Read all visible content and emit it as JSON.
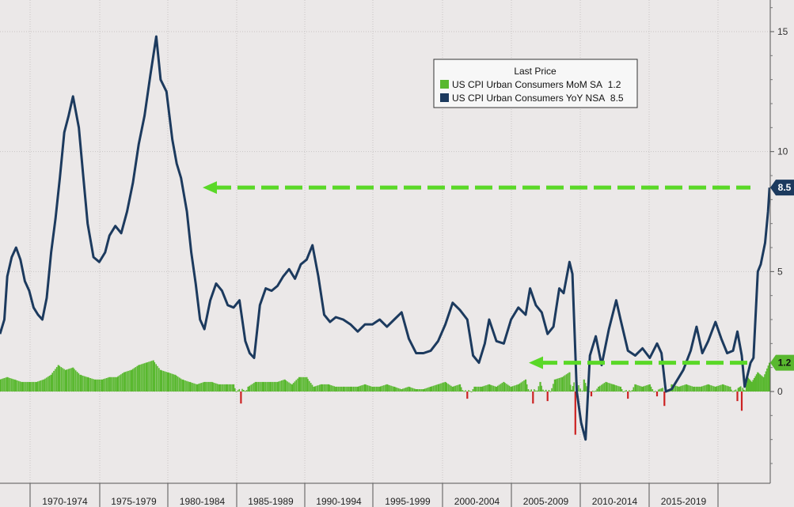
{
  "chart_data": {
    "type": "line",
    "legend": {
      "title": "Last Price",
      "placement": "top-right",
      "entries": [
        {
          "label": "US CPI Urban Consumers MoM SA",
          "value": "1.2",
          "color": "#59b82f"
        },
        {
          "label": "US CPI Urban Consumers YoY NSA",
          "value": "8.5",
          "color": "#1c3a5e"
        }
      ]
    },
    "x_labels": [
      "1970-1974",
      "1975-1979",
      "1980-1984",
      "1985-1989",
      "1990-1994",
      "1995-1999",
      "2000-2004",
      "2005-2009",
      "2010-2014",
      "2015-2019"
    ],
    "x_range": [
      1969.5,
      2022.25
    ],
    "y_ticks": [
      "15",
      "10",
      "5",
      "0"
    ],
    "ylim": [
      -3.5,
      16
    ],
    "grid": true,
    "last_values": {
      "mom": "1.2",
      "yoy": "8.5"
    },
    "series": [
      {
        "name": "US CPI Urban Consumers YoY NSA",
        "kind": "line",
        "color": "#1c3a5e",
        "x": [
          1969.5,
          1969.8,
          1970.0,
          1970.3,
          1970.6,
          1970.9,
          1971.2,
          1971.5,
          1971.8,
          1972.1,
          1972.4,
          1972.7,
          1973.0,
          1973.3,
          1973.6,
          1973.9,
          1974.2,
          1974.5,
          1974.9,
          1975.2,
          1975.5,
          1975.9,
          1976.3,
          1976.7,
          1977.0,
          1977.4,
          1977.8,
          1978.2,
          1978.6,
          1979.0,
          1979.4,
          1979.8,
          1980.2,
          1980.5,
          1980.9,
          1981.3,
          1981.6,
          1981.9,
          1982.3,
          1982.6,
          1982.9,
          1983.2,
          1983.5,
          1983.9,
          1984.3,
          1984.7,
          1985.1,
          1985.5,
          1985.9,
          1986.3,
          1986.6,
          1986.9,
          1987.3,
          1987.7,
          1988.1,
          1988.5,
          1988.9,
          1989.3,
          1989.7,
          1990.1,
          1990.5,
          1990.9,
          1991.3,
          1991.7,
          1992.1,
          1992.5,
          1993.0,
          1993.5,
          1994.0,
          1994.5,
          1995.0,
          1995.5,
          1996.0,
          1996.5,
          1997.0,
          1997.5,
          1998.0,
          1998.5,
          1999.0,
          1999.5,
          2000.0,
          2000.5,
          2001.0,
          2001.5,
          2001.9,
          2002.3,
          2002.7,
          2003.0,
          2003.5,
          2004.0,
          2004.5,
          2005.0,
          2005.5,
          2005.8,
          2006.2,
          2006.6,
          2007.0,
          2007.4,
          2007.8,
          2008.1,
          2008.5,
          2008.7,
          2009.0,
          2009.3,
          2009.6,
          2009.9,
          2010.3,
          2010.7,
          2011.2,
          2011.7,
          2012.0,
          2012.5,
          2013.0,
          2013.5,
          2014.0,
          2014.5,
          2014.8,
          2015.1,
          2015.5,
          2015.9,
          2016.3,
          2016.8,
          2017.2,
          2017.6,
          2018.0,
          2018.5,
          2018.9,
          2019.3,
          2019.7,
          2020.0,
          2020.3,
          2020.5,
          2020.9,
          2021.1,
          2021.4,
          2021.6,
          2021.9,
          2022.1,
          2022.2
        ],
        "y": [
          2.4,
          3.0,
          4.8,
          5.6,
          6.0,
          5.5,
          4.6,
          4.2,
          3.5,
          3.2,
          3.0,
          3.9,
          5.8,
          7.2,
          8.9,
          10.8,
          11.5,
          12.3,
          11.0,
          9.0,
          7.0,
          5.6,
          5.4,
          5.8,
          6.5,
          6.9,
          6.6,
          7.5,
          8.7,
          10.3,
          11.5,
          13.2,
          14.8,
          13.0,
          12.5,
          10.5,
          9.5,
          8.9,
          7.5,
          5.8,
          4.5,
          3.0,
          2.6,
          3.8,
          4.5,
          4.2,
          3.6,
          3.5,
          3.8,
          2.1,
          1.6,
          1.4,
          3.6,
          4.3,
          4.2,
          4.4,
          4.8,
          5.1,
          4.7,
          5.3,
          5.5,
          6.1,
          4.8,
          3.2,
          2.9,
          3.1,
          3.0,
          2.8,
          2.5,
          2.8,
          2.8,
          3.0,
          2.7,
          3.0,
          3.3,
          2.2,
          1.6,
          1.6,
          1.7,
          2.1,
          2.8,
          3.7,
          3.4,
          3.0,
          1.5,
          1.2,
          2.0,
          3.0,
          2.1,
          2.0,
          3.0,
          3.5,
          3.2,
          4.3,
          3.6,
          3.3,
          2.4,
          2.7,
          4.3,
          4.1,
          5.4,
          4.9,
          0.0,
          -1.3,
          -2.0,
          1.5,
          2.3,
          1.1,
          2.6,
          3.8,
          3.0,
          1.7,
          1.5,
          1.8,
          1.4,
          2.0,
          1.6,
          0.0,
          0.1,
          0.5,
          0.9,
          1.7,
          2.7,
          1.6,
          2.1,
          2.9,
          2.2,
          1.6,
          1.7,
          2.5,
          1.5,
          0.2,
          1.2,
          1.4,
          5.0,
          5.3,
          6.2,
          7.5,
          8.5
        ]
      },
      {
        "name": "US CPI Urban Consumers MoM SA",
        "kind": "bar",
        "color": "#59b82f",
        "negative_color": "#cc2222",
        "x": [
          1969.5,
          1970.0,
          1970.5,
          1971.0,
          1971.5,
          1972.0,
          1972.5,
          1973.0,
          1973.5,
          1974.0,
          1974.5,
          1975.0,
          1975.5,
          1976.0,
          1976.5,
          1977.0,
          1977.5,
          1978.0,
          1978.5,
          1979.0,
          1979.5,
          1980.0,
          1980.5,
          1981.0,
          1981.5,
          1982.0,
          1982.5,
          1983.0,
          1983.5,
          1984.0,
          1984.5,
          1985.0,
          1985.5,
          1986.0,
          1986.5,
          1987.0,
          1987.5,
          1988.0,
          1988.5,
          1989.0,
          1989.5,
          1990.0,
          1990.5,
          1991.0,
          1991.5,
          1992.0,
          1992.5,
          1993.0,
          1993.5,
          1994.0,
          1994.5,
          1995.0,
          1995.5,
          1996.0,
          1996.5,
          1997.0,
          1997.5,
          1998.0,
          1998.5,
          1999.0,
          1999.5,
          2000.0,
          2000.5,
          2001.0,
          2001.5,
          2002.0,
          2002.5,
          2003.0,
          2003.5,
          2004.0,
          2004.5,
          2005.0,
          2005.5,
          2006.0,
          2006.5,
          2007.0,
          2007.5,
          2008.0,
          2008.5,
          2008.9,
          2009.5,
          2010.0,
          2010.5,
          2011.0,
          2011.5,
          2012.0,
          2012.5,
          2013.0,
          2013.5,
          2014.0,
          2014.5,
          2015.0,
          2015.5,
          2016.0,
          2016.5,
          2017.0,
          2017.5,
          2018.0,
          2018.5,
          2019.0,
          2019.5,
          2020.0,
          2020.3,
          2020.7,
          2021.0,
          2021.4,
          2021.8,
          2022.2
        ],
        "y": [
          0.5,
          0.6,
          0.5,
          0.4,
          0.4,
          0.4,
          0.5,
          0.7,
          1.1,
          0.9,
          1.0,
          0.7,
          0.6,
          0.5,
          0.5,
          0.6,
          0.6,
          0.8,
          0.9,
          1.1,
          1.2,
          1.3,
          0.9,
          0.8,
          0.7,
          0.5,
          0.4,
          0.3,
          0.4,
          0.4,
          0.3,
          0.3,
          0.3,
          -0.5,
          0.2,
          0.4,
          0.4,
          0.4,
          0.4,
          0.5,
          0.3,
          0.6,
          0.6,
          0.2,
          0.3,
          0.3,
          0.2,
          0.2,
          0.2,
          0.2,
          0.3,
          0.2,
          0.2,
          0.3,
          0.2,
          0.1,
          0.2,
          0.1,
          0.1,
          0.2,
          0.3,
          0.4,
          0.2,
          0.3,
          -0.3,
          0.2,
          0.2,
          0.3,
          0.2,
          0.4,
          0.2,
          0.3,
          0.5,
          -0.5,
          0.4,
          -0.4,
          0.5,
          0.6,
          0.8,
          -1.8,
          0.5,
          -0.2,
          0.2,
          0.4,
          0.3,
          0.2,
          -0.3,
          0.3,
          0.2,
          0.3,
          -0.2,
          -0.6,
          0.3,
          0.2,
          0.3,
          0.2,
          0.2,
          0.3,
          0.2,
          0.3,
          0.2,
          -0.4,
          -0.8,
          0.6,
          0.4,
          0.8,
          0.6,
          1.2
        ]
      }
    ]
  }
}
